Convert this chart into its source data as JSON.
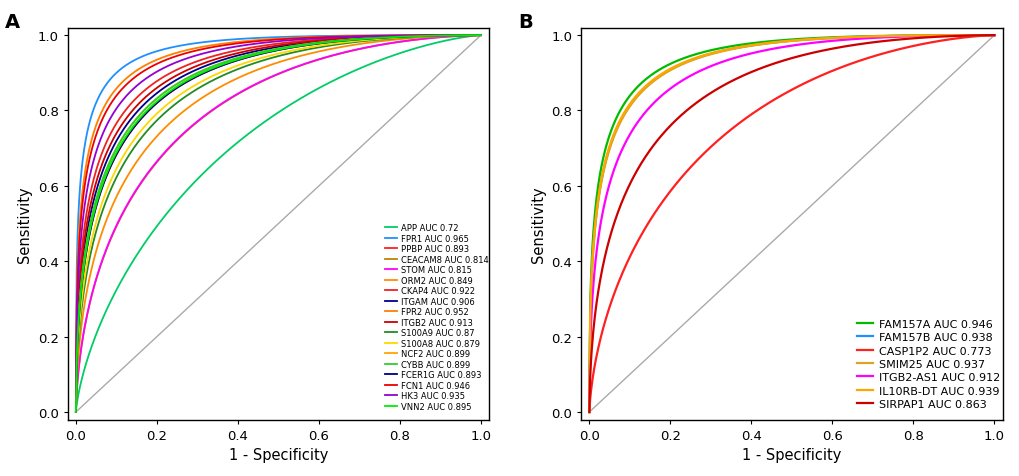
{
  "panel_A": {
    "curves": [
      {
        "label": "APP AUC 0.72",
        "auc": 0.72,
        "color": "#00CD66",
        "lw": 1.3
      },
      {
        "label": "FPR1 AUC 0.965",
        "auc": 0.965,
        "color": "#1E90FF",
        "lw": 1.3
      },
      {
        "label": "PPBP AUC 0.893",
        "auc": 0.893,
        "color": "#FF2020",
        "lw": 1.3
      },
      {
        "label": "CEACAM8 AUC 0.814",
        "auc": 0.814,
        "color": "#B8860B",
        "lw": 1.3
      },
      {
        "label": "STOM AUC 0.815",
        "auc": 0.815,
        "color": "#FF00FF",
        "lw": 1.3
      },
      {
        "label": "ORM2 AUC 0.849",
        "auc": 0.849,
        "color": "#FF8C00",
        "lw": 1.3
      },
      {
        "label": "CKAP4 AUC 0.922",
        "auc": 0.922,
        "color": "#EE2222",
        "lw": 1.3
      },
      {
        "label": "ITGAM AUC 0.906",
        "auc": 0.906,
        "color": "#00008B",
        "lw": 1.3
      },
      {
        "label": "FPR2 AUC 0.952",
        "auc": 0.952,
        "color": "#FF7F00",
        "lw": 1.3
      },
      {
        "label": "ITGB2 AUC 0.913",
        "auc": 0.913,
        "color": "#CC0000",
        "lw": 1.3
      },
      {
        "label": "S100A9 AUC 0.87",
        "auc": 0.87,
        "color": "#228B22",
        "lw": 1.3
      },
      {
        "label": "S100A8 AUC 0.879",
        "auc": 0.879,
        "color": "#FFD700",
        "lw": 1.3
      },
      {
        "label": "NCF2 AUC 0.899",
        "auc": 0.899,
        "color": "#FFA500",
        "lw": 1.3
      },
      {
        "label": "CYBB AUC 0.899",
        "auc": 0.899,
        "color": "#32CD32",
        "lw": 1.3
      },
      {
        "label": "FCER1G AUC 0.893",
        "auc": 0.893,
        "color": "#000080",
        "lw": 1.3
      },
      {
        "label": "FCN1 AUC 0.946",
        "auc": 0.946,
        "color": "#EE0000",
        "lw": 1.3
      },
      {
        "label": "HK3 AUC 0.935",
        "auc": 0.935,
        "color": "#9400D3",
        "lw": 1.3
      },
      {
        "label": "VNN2 AUC 0.895",
        "auc": 0.895,
        "color": "#00EE00",
        "lw": 1.3
      }
    ]
  },
  "panel_B": {
    "curves": [
      {
        "label": "FAM157A AUC 0.946",
        "auc": 0.946,
        "color": "#00BB00",
        "lw": 1.6
      },
      {
        "label": "FAM157B AUC 0.938",
        "auc": 0.938,
        "color": "#1E90FF",
        "lw": 1.6
      },
      {
        "label": "CASP1P2 AUC 0.773",
        "auc": 0.773,
        "color": "#FF2020",
        "lw": 1.6
      },
      {
        "label": "SMIM25 AUC 0.937",
        "auc": 0.937,
        "color": "#DAA520",
        "lw": 1.6
      },
      {
        "label": "ITGB2-AS1 AUC 0.912",
        "auc": 0.912,
        "color": "#FF00FF",
        "lw": 1.6
      },
      {
        "label": "IL10RB-DT AUC 0.939",
        "auc": 0.939,
        "color": "#FFA500",
        "lw": 1.6
      },
      {
        "label": "SIRPAP1 AUC 0.863",
        "auc": 0.863,
        "color": "#CC0000",
        "lw": 1.6
      }
    ]
  },
  "diag_color": "#AAAAAA",
  "bg_color": "#FFFFFF",
  "xlabel": "1 - Specificity",
  "ylabel": "Sensitivity",
  "xticks": [
    0.0,
    0.2,
    0.4,
    0.6,
    0.8,
    1.0
  ],
  "yticks": [
    0.0,
    0.2,
    0.4,
    0.6,
    0.8,
    1.0
  ]
}
